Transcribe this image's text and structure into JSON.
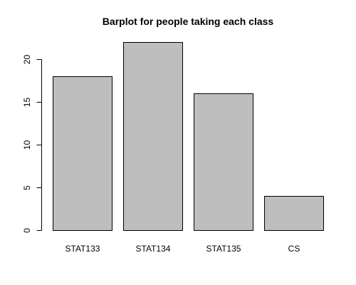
{
  "chart_data": {
    "type": "bar",
    "title": "Barplot for people taking each class",
    "xlabel": "",
    "ylabel": "",
    "categories": [
      "STAT133",
      "STAT134",
      "STAT135",
      "CS"
    ],
    "values": [
      18,
      22,
      16,
      4
    ],
    "ylim": [
      0,
      22
    ],
    "yticks": [
      0,
      5,
      10,
      15,
      20
    ],
    "bar_color": "#bebebe",
    "grid": false,
    "legend": "none"
  }
}
